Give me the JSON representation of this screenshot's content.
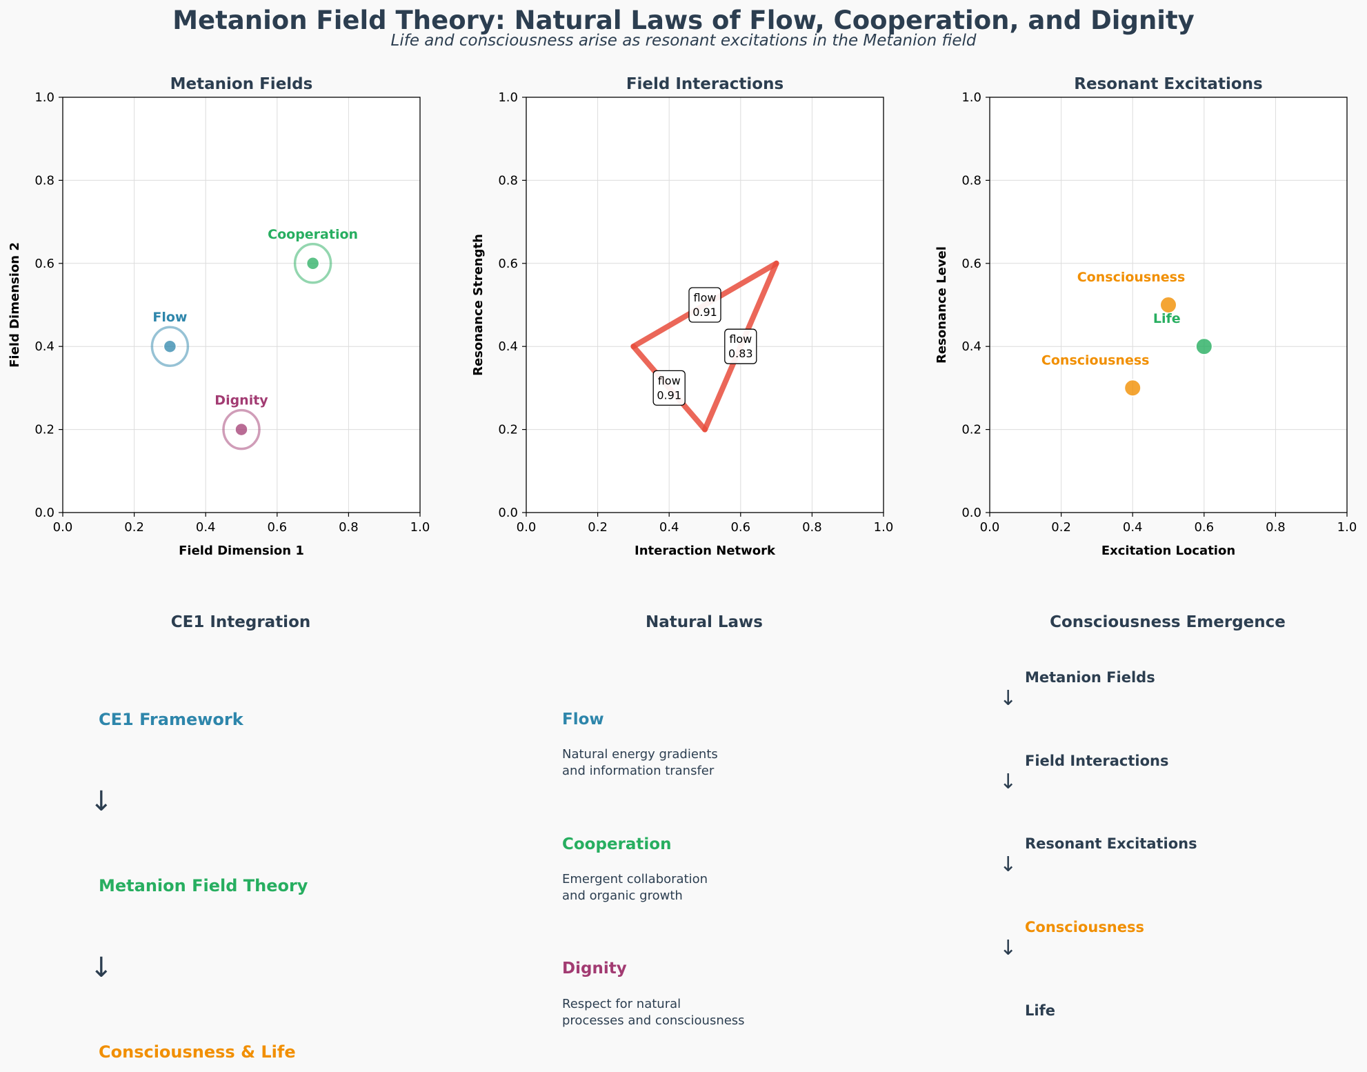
{
  "title": "Metanion Field Theory: Natural Laws of Flow, Cooperation, and Dignity",
  "subtitle": "Life and consciousness arise as resonant excitations in the Metanion field",
  "colors": {
    "text": "#2c3e50",
    "flow": "#2e86ab",
    "cooperation": "#27ae60",
    "dignity": "#a23b72",
    "consciousness": "#f18f01",
    "interaction": "#e74c3c",
    "background": "#f9f9f9"
  },
  "chart_data": [
    {
      "type": "scatter",
      "title": "Metanion Fields",
      "xlabel": "Field Dimension 1",
      "ylabel": "Field Dimension 2",
      "xlim": [
        0,
        1
      ],
      "ylim": [
        0,
        1
      ],
      "ticks": [
        "0.0",
        "0.2",
        "0.4",
        "0.6",
        "0.8",
        "1.0"
      ],
      "grid": true,
      "points": [
        {
          "x": 0.3,
          "y": 0.4,
          "label": "Flow",
          "color": "#2e86ab"
        },
        {
          "x": 0.7,
          "y": 0.6,
          "label": "Cooperation",
          "color": "#27ae60"
        },
        {
          "x": 0.5,
          "y": 0.2,
          "label": "Dignity",
          "color": "#a23b72"
        }
      ]
    },
    {
      "type": "line",
      "title": "Field Interactions",
      "xlabel": "Interaction Network",
      "ylabel": "Resonance Strength",
      "xlim": [
        0,
        1
      ],
      "ylim": [
        0,
        1
      ],
      "ticks": [
        "0.0",
        "0.2",
        "0.4",
        "0.6",
        "0.8",
        "1.0"
      ],
      "grid": true,
      "edges": [
        {
          "from": [
            0.3,
            0.4
          ],
          "to": [
            0.7,
            0.6
          ],
          "type": "flow",
          "strength": "0.91"
        },
        {
          "from": [
            0.7,
            0.6
          ],
          "to": [
            0.5,
            0.2
          ],
          "type": "flow",
          "strength": "0.83"
        },
        {
          "from": [
            0.5,
            0.2
          ],
          "to": [
            0.3,
            0.4
          ],
          "type": "flow",
          "strength": "0.91"
        }
      ]
    },
    {
      "type": "scatter",
      "title": "Resonant Excitations",
      "xlabel": "Excitation Location",
      "ylabel": "Resonance Level",
      "xlim": [
        0,
        1
      ],
      "ylim": [
        0,
        1
      ],
      "ticks": [
        "0.0",
        "0.2",
        "0.4",
        "0.6",
        "0.8",
        "1.0"
      ],
      "grid": true,
      "points": [
        {
          "x": 0.5,
          "y": 0.5,
          "label": "Consciousness",
          "color": "#f18f01"
        },
        {
          "x": 0.6,
          "y": 0.4,
          "label": "Life",
          "color": "#27ae60"
        },
        {
          "x": 0.4,
          "y": 0.3,
          "label": "Consciousness",
          "color": "#f18f01"
        }
      ]
    }
  ],
  "ce1": {
    "title": "CE1 Integration",
    "items": [
      "CE1 Framework",
      "Metanion Field Theory",
      "Consciousness & Life"
    ],
    "arrow": "↓"
  },
  "laws": {
    "title": "Natural Laws",
    "items": [
      {
        "name": "Flow",
        "desc": "Natural energy gradients\nand information transfer"
      },
      {
        "name": "Cooperation",
        "desc": "Emergent collaboration\nand organic growth"
      },
      {
        "name": "Dignity",
        "desc": "Respect for natural\nprocesses and consciousness"
      }
    ]
  },
  "emergence": {
    "title": "Consciousness Emergence",
    "steps": [
      "Metanion Fields",
      "Field Interactions",
      "Resonant Excitations",
      "Consciousness",
      "Life"
    ],
    "arrow": "↓"
  }
}
